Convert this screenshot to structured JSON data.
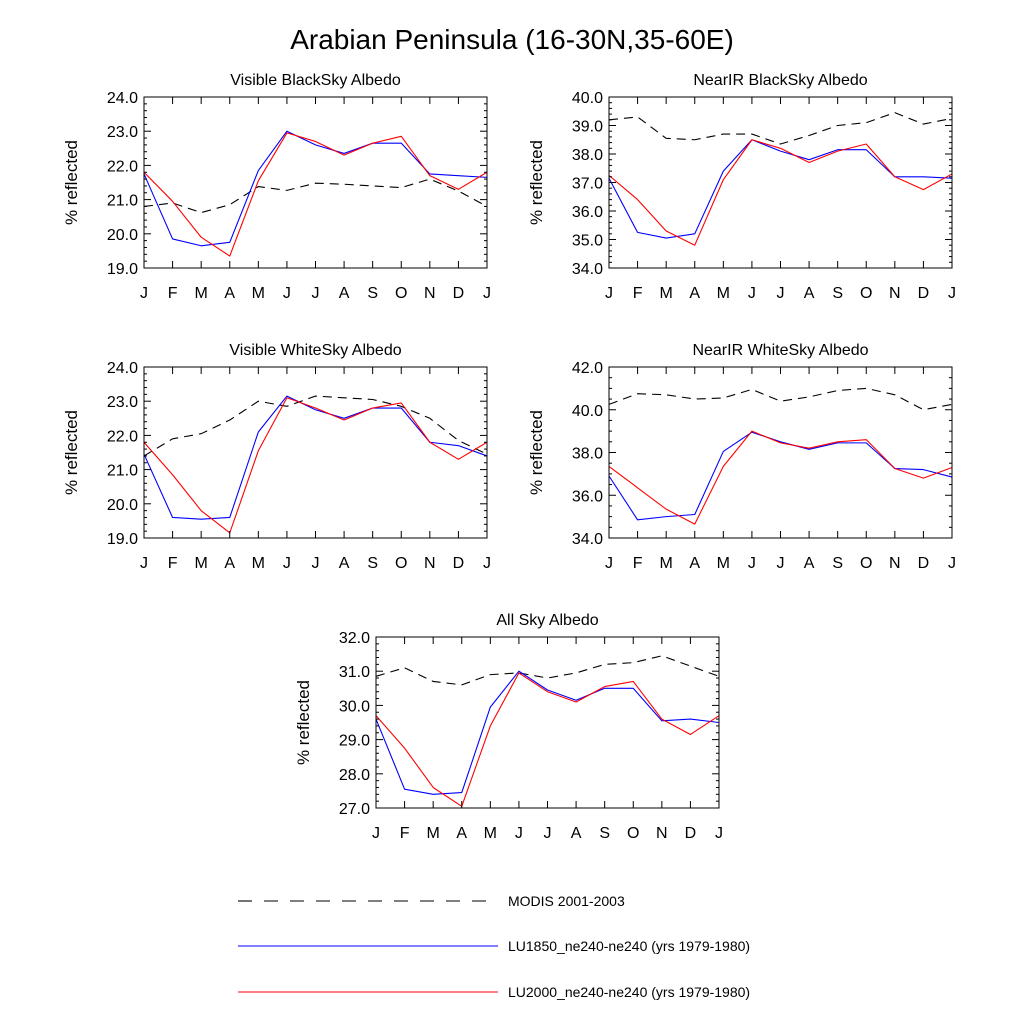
{
  "figure": {
    "title": "Arabian Peninsula (16-30N,35-60E)"
  },
  "legend": {
    "entries": [
      {
        "name": "MODIS 2001-2003",
        "color": "#000000",
        "dash": true
      },
      {
        "name": "LU1850_ne240-ne240 (yrs 1979-1980)",
        "color": "#0000ff",
        "dash": false
      },
      {
        "name": "LU2000_ne240-ne240 (yrs 1979-1980)",
        "color": "#ff0000",
        "dash": false
      }
    ]
  },
  "chart_data": [
    {
      "type": "line",
      "title": "Visible BlackSky Albedo",
      "ylabel": "% reflected",
      "xlabel": "",
      "categories": [
        "J",
        "F",
        "M",
        "A",
        "M",
        "J",
        "J",
        "A",
        "S",
        "O",
        "N",
        "D",
        "J"
      ],
      "ylim": [
        19.0,
        24.0
      ],
      "yticks": [
        "19.0",
        "20.0",
        "21.0",
        "22.0",
        "23.0",
        "24.0"
      ],
      "series": [
        {
          "name": "MODIS 2001-2003",
          "values": [
            20.8,
            20.9,
            20.62,
            20.85,
            21.38,
            21.27,
            21.48,
            21.45,
            21.4,
            21.35,
            21.6,
            21.25,
            20.8
          ]
        },
        {
          "name": "LU1850_ne240-ne240 (yrs 1979-1980)",
          "values": [
            21.75,
            19.85,
            19.65,
            19.75,
            21.85,
            23.0,
            22.6,
            22.35,
            22.65,
            22.65,
            21.75,
            21.7,
            21.65
          ]
        },
        {
          "name": "LU2000_ne240-ne240 (yrs 1979-1980)",
          "values": [
            21.8,
            20.95,
            19.9,
            19.35,
            21.55,
            22.95,
            22.7,
            22.3,
            22.65,
            22.85,
            21.7,
            21.3,
            21.8
          ]
        }
      ]
    },
    {
      "type": "line",
      "title": "NearIR BlackSky Albedo",
      "ylabel": "% reflected",
      "xlabel": "",
      "categories": [
        "J",
        "F",
        "M",
        "A",
        "M",
        "J",
        "J",
        "A",
        "S",
        "O",
        "N",
        "D",
        "J"
      ],
      "ylim": [
        34.0,
        40.0
      ],
      "yticks": [
        "34.0",
        "35.0",
        "36.0",
        "37.0",
        "38.0",
        "39.0",
        "40.0"
      ],
      "series": [
        {
          "name": "MODIS 2001-2003",
          "values": [
            39.2,
            39.3,
            38.55,
            38.5,
            38.7,
            38.7,
            38.35,
            38.65,
            39.0,
            39.1,
            39.45,
            39.05,
            39.25
          ]
        },
        {
          "name": "LU1850_ne240-ne240 (yrs 1979-1980)",
          "values": [
            37.15,
            35.25,
            35.05,
            35.2,
            37.4,
            38.5,
            38.1,
            37.8,
            38.15,
            38.15,
            37.2,
            37.2,
            37.15
          ]
        },
        {
          "name": "LU2000_ne240-ne240 (yrs 1979-1980)",
          "values": [
            37.25,
            36.4,
            35.3,
            34.8,
            37.1,
            38.5,
            38.2,
            37.7,
            38.1,
            38.35,
            37.2,
            36.75,
            37.3
          ]
        }
      ]
    },
    {
      "type": "line",
      "title": "Visible WhiteSky Albedo",
      "ylabel": "% reflected",
      "xlabel": "",
      "categories": [
        "J",
        "F",
        "M",
        "A",
        "M",
        "J",
        "J",
        "A",
        "S",
        "O",
        "N",
        "D",
        "J"
      ],
      "ylim": [
        19.0,
        24.0
      ],
      "yticks": [
        "19.0",
        "20.0",
        "21.0",
        "22.0",
        "23.0",
        "24.0"
      ],
      "series": [
        {
          "name": "MODIS 2001-2003",
          "values": [
            21.4,
            21.9,
            22.05,
            22.45,
            23.0,
            22.85,
            23.15,
            23.1,
            23.05,
            22.85,
            22.5,
            21.85,
            21.45
          ]
        },
        {
          "name": "LU1850_ne240-ne240 (yrs 1979-1980)",
          "values": [
            21.45,
            19.6,
            19.55,
            19.6,
            22.1,
            23.15,
            22.75,
            22.5,
            22.8,
            22.8,
            21.8,
            21.7,
            21.4
          ]
        },
        {
          "name": "LU2000_ne240-ne240 (yrs 1979-1980)",
          "values": [
            21.8,
            20.85,
            19.8,
            19.15,
            21.55,
            23.1,
            22.8,
            22.45,
            22.8,
            22.95,
            21.8,
            21.3,
            21.8
          ]
        }
      ]
    },
    {
      "type": "line",
      "title": "NearIR WhiteSky Albedo",
      "ylabel": "% reflected",
      "xlabel": "",
      "categories": [
        "J",
        "F",
        "M",
        "A",
        "M",
        "J",
        "J",
        "A",
        "S",
        "O",
        "N",
        "D",
        "J"
      ],
      "ylim": [
        34.0,
        42.0
      ],
      "yticks": [
        "34.0",
        "36.0",
        "38.0",
        "40.0",
        "42.0"
      ],
      "series": [
        {
          "name": "MODIS 2001-2003",
          "values": [
            40.25,
            40.75,
            40.7,
            40.5,
            40.55,
            40.95,
            40.4,
            40.6,
            40.9,
            41.0,
            40.7,
            40.0,
            40.25
          ]
        },
        {
          "name": "LU1850_ne240-ne240 (yrs 1979-1980)",
          "values": [
            36.9,
            34.85,
            35.0,
            35.1,
            38.05,
            38.95,
            38.5,
            38.15,
            38.45,
            38.45,
            37.25,
            37.2,
            36.85
          ]
        },
        {
          "name": "LU2000_ne240-ne240 (yrs 1979-1980)",
          "values": [
            37.35,
            36.35,
            35.35,
            34.65,
            37.35,
            39.0,
            38.45,
            38.2,
            38.5,
            38.6,
            37.25,
            36.8,
            37.3
          ]
        }
      ]
    },
    {
      "type": "line",
      "title": "All Sky Albedo",
      "ylabel": "% reflected",
      "xlabel": "",
      "categories": [
        "J",
        "F",
        "M",
        "A",
        "M",
        "J",
        "J",
        "A",
        "S",
        "O",
        "N",
        "D",
        "J"
      ],
      "ylim": [
        27.0,
        32.0
      ],
      "yticks": [
        "27.0",
        "28.0",
        "29.0",
        "30.0",
        "31.0",
        "32.0"
      ],
      "series": [
        {
          "name": "MODIS 2001-2003",
          "values": [
            30.85,
            31.1,
            30.7,
            30.6,
            30.9,
            30.95,
            30.8,
            30.95,
            31.2,
            31.25,
            31.45,
            31.15,
            30.85
          ]
        },
        {
          "name": "LU1850_ne240-ne240 (yrs 1979-1980)",
          "values": [
            29.6,
            27.55,
            27.4,
            27.45,
            29.95,
            31.0,
            30.45,
            30.15,
            30.5,
            30.5,
            29.55,
            29.6,
            29.5
          ]
        },
        {
          "name": "LU2000_ne240-ne240 (yrs 1979-1980)",
          "values": [
            29.7,
            28.75,
            27.6,
            27.05,
            29.4,
            30.95,
            30.4,
            30.1,
            30.55,
            30.7,
            29.6,
            29.15,
            29.7
          ]
        }
      ]
    }
  ]
}
